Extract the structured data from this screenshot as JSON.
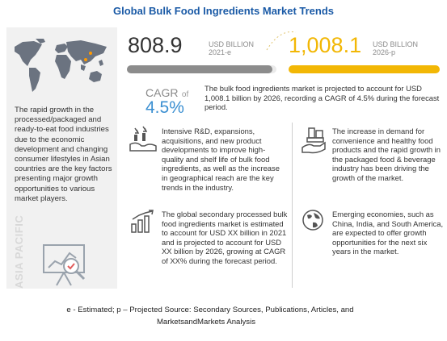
{
  "title": "Global Bulk Food Ingredients Market Trends",
  "left_panel": {
    "description": "The rapid growth in the processed/packaged and ready-to-eat food industries due to the economic development and changing consumer lifestyles in Asian countries are the key factors presenting major growth opportunities to various market players.",
    "region_label": "ASIA PACIFIC",
    "icons": [
      "world-map-icon",
      "analytics-board-icon"
    ]
  },
  "market_size": {
    "value_2021": "808.9",
    "unit_2021": "USD BILLION",
    "year_2021": "2021-e",
    "value_2026": "1,008.1",
    "unit_2026": "USD BILLION",
    "year_2026": "2026-p",
    "colors": {
      "bar_2021": "#8c8c8c",
      "bar_2026": "#f2b705",
      "value_2026": "#f2b705"
    }
  },
  "cagr": {
    "label": "CAGR",
    "of": "of",
    "value": "4.5%",
    "summary": "The bulk food ingredients market is projected to account for USD 1,008.1 billion by 2026, recording a CAGR of 4.5% during the forecast period.",
    "color": "#3b8fd1"
  },
  "insights": [
    {
      "icon": "hands-growth-icon",
      "text": "Intensive R&D, expansions, acquisitions, and new product developments to improve high-quality and shelf life of bulk food ingredients, as well as the increase in geographical reach are the key trends in the industry."
    },
    {
      "icon": "hand-products-icon",
      "text": "The increase in demand for convenience and healthy food products and the rapid growth in the packaged food & beverage industry has been driving the growth of the market."
    },
    {
      "icon": "bar-growth-icon",
      "text": "The global secondary processed bulk food ingredients market is estimated to account for USD XX billion in 2021 and is projected to account for USD XX billion by 2026, growing at CAGR of XX% during the forecast period."
    },
    {
      "icon": "globe-icon",
      "text": "Emerging economies, such as China, India, and South America, are expected to offer growth opportunities for the next six years in the market."
    }
  ],
  "footer": {
    "line1": "e - Estimated; p – Projected  Source: Secondary Sources, Publications, Articles, and",
    "line2": "MarketsandMarkets Analysis"
  }
}
